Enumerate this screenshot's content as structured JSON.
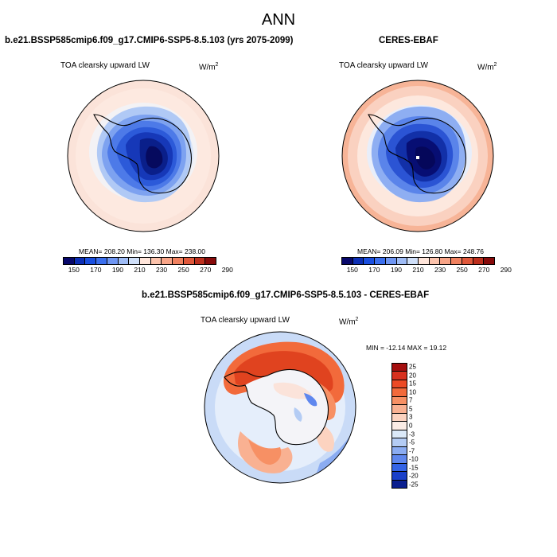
{
  "title": "ANN",
  "panels": {
    "model": {
      "run_title": "b.e21.BSSP585cmip6.f09_g17.CMIP6-SSP5-8.5.103 (yrs 2075-2099)",
      "variable": "TOA clearsky upward LW",
      "units_base": "W/m",
      "units_exp": "2",
      "stats": "MEAN= 208.20   Min= 136.30   Max= 238.00"
    },
    "obs": {
      "run_title": "CERES-EBAF",
      "variable": "TOA clearsky upward LW",
      "units_base": "W/m",
      "units_exp": "2",
      "stats": "MEAN= 206.09   Min= 126.80   Max= 248.76"
    },
    "diff": {
      "run_title": "b.e21.BSSP585cmip6.f09_g17.CMIP6-SSP5-8.5.103 - CERES-EBAF",
      "variable": "TOA clearsky upward LW",
      "units_base": "W/m",
      "units_exp": "2",
      "stats": "MIN = -12.14 MAX =  19.12"
    }
  },
  "colorbar_main": {
    "colors": [
      "#08086b",
      "#0d2fb5",
      "#1a4fe0",
      "#3b6fee",
      "#6f96f3",
      "#9fbcf6",
      "#cfdff9",
      "#ffe5da",
      "#fcc3ac",
      "#f8a487",
      "#f0815f",
      "#e0583b",
      "#bd2f1d",
      "#870a0a"
    ],
    "labels": [
      "150",
      "170",
      "190",
      "210",
      "230",
      "250",
      "270",
      "290"
    ]
  },
  "colorbar_diff": {
    "colors": [
      "#a50f0f",
      "#d7301e",
      "#ec4a25",
      "#f26a3b",
      "#f79064",
      "#f9b192",
      "#fcd3c0",
      "#fbece5",
      "#dbe9f8",
      "#b4ccf4",
      "#8bacf2",
      "#5f87ee",
      "#3464e6",
      "#1a40c9",
      "#0b1f8f"
    ],
    "labels": [
      "25",
      "20",
      "15",
      "10",
      "7",
      "5",
      "3",
      "0",
      "-3",
      "-5",
      "-7",
      "-10",
      "-15",
      "-20",
      "-25"
    ]
  }
}
